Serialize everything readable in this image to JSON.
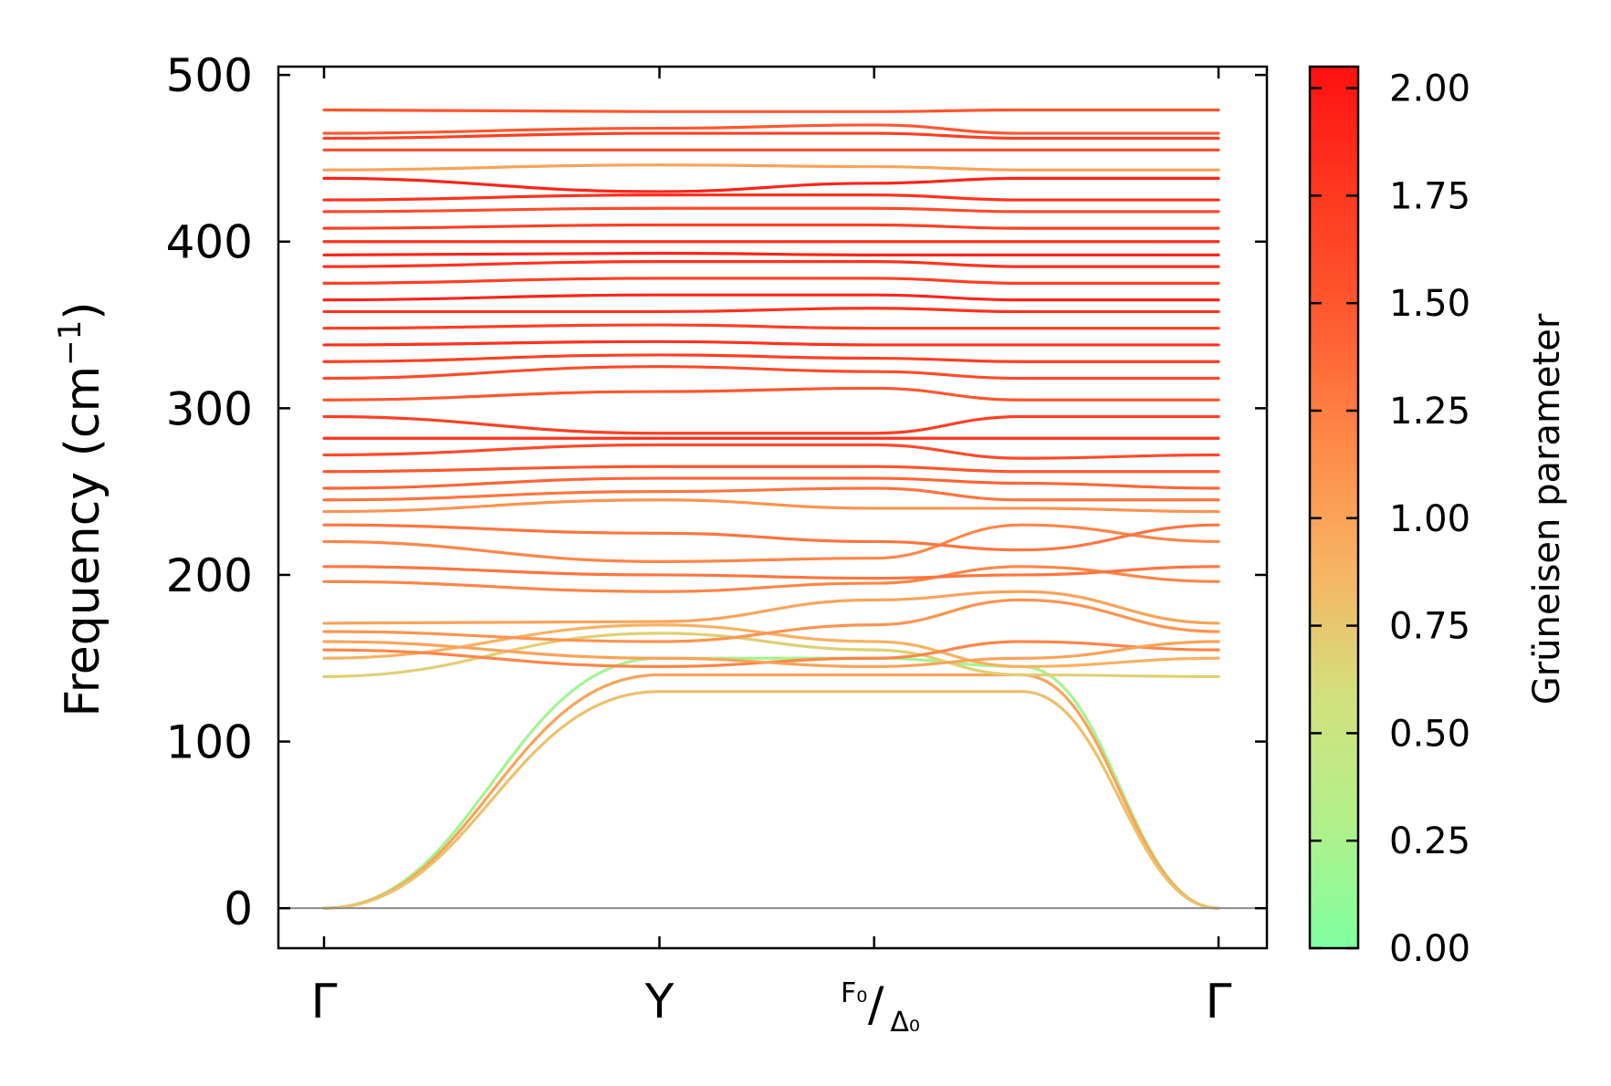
{
  "chart_data": {
    "type": "line",
    "ylabel_main": "Frequency (cm",
    "ylabel_sup": "−1",
    "ylabel_close": ")",
    "ylim": [
      -24,
      505
    ],
    "y_ticks": [
      "0",
      "100",
      "200",
      "300",
      "400",
      "500"
    ],
    "x_ticks": [
      {
        "label": "Γ",
        "pos": 0.0
      },
      {
        "label": "Y",
        "pos": 0.375
      },
      {
        "label_main": "F₀",
        "label_sub": "Δ₀",
        "pos": 0.615
      },
      {
        "label": "Γ",
        "pos": 1.0
      }
    ],
    "colorbar": {
      "label": "Grüneisen parameter",
      "range": [
        0.0,
        2.05
      ],
      "ticks": [
        "0.00",
        "0.25",
        "0.50",
        "0.75",
        "1.00",
        "1.25",
        "1.50",
        "1.75",
        "2.00"
      ],
      "colors": [
        "#7fffa0",
        "#b2f08a",
        "#d3e07e",
        "#f7b464",
        "#ff8a4a",
        "#ff5a30",
        "#ff3820",
        "#ff1010"
      ]
    },
    "series": [
      {
        "g": 0.2,
        "values": [
          0,
          150,
          150,
          145,
          0
        ]
      },
      {
        "g": 1.0,
        "values": [
          0,
          140,
          140,
          140,
          0
        ]
      },
      {
        "g": 0.8,
        "values": [
          0,
          130,
          130,
          130,
          0
        ]
      },
      {
        "g": 0.7,
        "values": [
          139,
          165,
          155,
          140,
          139
        ]
      },
      {
        "g": 0.9,
        "values": [
          150,
          170,
          160,
          145,
          150
        ]
      },
      {
        "g": 1.2,
        "values": [
          155,
          145,
          150,
          160,
          155
        ]
      },
      {
        "g": 1.0,
        "values": [
          160,
          150,
          145,
          150,
          160
        ]
      },
      {
        "g": 1.1,
        "values": [
          166,
          160,
          170,
          185,
          166
        ]
      },
      {
        "g": 1.0,
        "values": [
          171,
          172,
          185,
          190,
          171
        ]
      },
      {
        "g": 1.2,
        "values": [
          196,
          190,
          195,
          205,
          196
        ]
      },
      {
        "g": 1.3,
        "values": [
          205,
          200,
          198,
          200,
          205
        ]
      },
      {
        "g": 1.2,
        "values": [
          220,
          208,
          210,
          230,
          220
        ]
      },
      {
        "g": 1.3,
        "values": [
          230,
          225,
          220,
          215,
          230
        ]
      },
      {
        "g": 1.1,
        "values": [
          238,
          245,
          240,
          240,
          238
        ]
      },
      {
        "g": 1.3,
        "values": [
          245,
          250,
          252,
          245,
          245
        ]
      },
      {
        "g": 1.4,
        "values": [
          252,
          258,
          258,
          255,
          252
        ]
      },
      {
        "g": 1.5,
        "values": [
          262,
          265,
          265,
          262,
          262
        ]
      },
      {
        "g": 1.6,
        "values": [
          272,
          278,
          278,
          270,
          272
        ]
      },
      {
        "g": 1.8,
        "values": [
          282,
          282,
          282,
          282,
          282
        ]
      },
      {
        "g": 1.7,
        "values": [
          295,
          285,
          285,
          295,
          295
        ]
      },
      {
        "g": 1.5,
        "values": [
          305,
          310,
          312,
          305,
          305
        ]
      },
      {
        "g": 1.6,
        "values": [
          318,
          325,
          322,
          318,
          318
        ]
      },
      {
        "g": 1.7,
        "values": [
          328,
          332,
          330,
          328,
          328
        ]
      },
      {
        "g": 1.8,
        "values": [
          338,
          340,
          338,
          338,
          338
        ]
      },
      {
        "g": 1.7,
        "values": [
          348,
          350,
          348,
          348,
          348
        ]
      },
      {
        "g": 1.8,
        "values": [
          358,
          358,
          360,
          358,
          358
        ]
      },
      {
        "g": 1.9,
        "values": [
          365,
          368,
          368,
          365,
          365
        ]
      },
      {
        "g": 1.7,
        "values": [
          375,
          378,
          378,
          375,
          375
        ]
      },
      {
        "g": 1.8,
        "values": [
          385,
          388,
          388,
          385,
          385
        ]
      },
      {
        "g": 1.9,
        "values": [
          392,
          393,
          392,
          392,
          392
        ]
      },
      {
        "g": 1.8,
        "values": [
          400,
          400,
          400,
          400,
          400
        ]
      },
      {
        "g": 1.7,
        "values": [
          408,
          410,
          410,
          408,
          408
        ]
      },
      {
        "g": 1.6,
        "values": [
          418,
          420,
          420,
          418,
          418
        ]
      },
      {
        "g": 1.8,
        "values": [
          425,
          428,
          428,
          425,
          425
        ]
      },
      {
        "g": 1.9,
        "values": [
          438,
          430,
          435,
          438,
          438
        ]
      },
      {
        "g": 1.0,
        "values": [
          443,
          446,
          445,
          443,
          443
        ]
      },
      {
        "g": 1.6,
        "values": [
          455,
          455,
          455,
          455,
          455
        ]
      },
      {
        "g": 1.7,
        "values": [
          462,
          465,
          465,
          462,
          462
        ]
      },
      {
        "g": 1.5,
        "values": [
          465,
          468,
          470,
          465,
          465
        ]
      },
      {
        "g": 1.5,
        "values": [
          479,
          478,
          478,
          479,
          479
        ]
      }
    ]
  }
}
